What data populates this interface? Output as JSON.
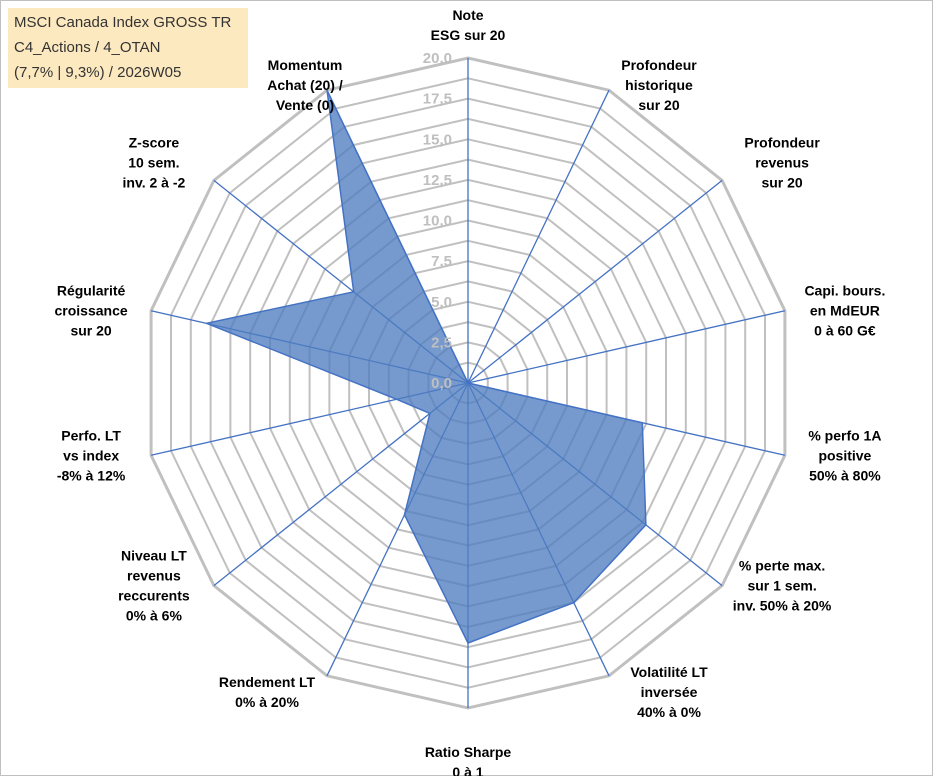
{
  "title": {
    "line1": "MSCI Canada Index GROSS TR",
    "line2": "C4_Actions / 4_OTAN",
    "line3": "(7,7% | 9,3%) / 2026W05"
  },
  "colors": {
    "grid": "#c0c0c0",
    "spoke": "#4472c4",
    "fill": "#4f7dc0",
    "fill_stroke": "#4472c4",
    "tick_text": "#bfbfbf",
    "title_bg": "#fde9bf"
  },
  "chart_data": {
    "type": "radar",
    "rmin": 0,
    "rmax": 20,
    "grid_step": 1.25,
    "tick_values": [
      0,
      2.5,
      5,
      7.5,
      10,
      12.5,
      15,
      17.5,
      20
    ],
    "tick_labels": [
      "0,0",
      "2,5",
      "5,0",
      "7,5",
      "10,0",
      "12,5",
      "15,0",
      "17,5",
      "20,0"
    ],
    "axes": [
      {
        "label": [
          "Note",
          "ESG sur 20"
        ],
        "value": 0
      },
      {
        "label": [
          "Profondeur",
          "historique",
          "sur 20"
        ],
        "value": 0
      },
      {
        "label": [
          "Profondeur",
          "revenus",
          "sur 20"
        ],
        "value": 0
      },
      {
        "label": [
          "Capi. bours.",
          "en MdEUR",
          "0 à 60 G€"
        ],
        "value": 0
      },
      {
        "label": [
          "% perfo 1A",
          "positive",
          "50% à 80%"
        ],
        "value": 11
      },
      {
        "label": [
          "% perte max.",
          "sur 1 sem.",
          "inv. 50% à 20%"
        ],
        "value": 14
      },
      {
        "label": [
          "Volatilité LT",
          "inversée",
          "40% à 0%"
        ],
        "value": 15
      },
      {
        "label": [
          "Ratio Sharpe",
          "0 à 1"
        ],
        "value": 16
      },
      {
        "label": [
          "Rendement LT",
          "0% à 20%"
        ],
        "value": 9
      },
      {
        "label": [
          "Niveau LT",
          "revenus",
          "reccurents",
          "0% à 6%"
        ],
        "value": 3
      },
      {
        "label": [
          "Perfo. LT",
          "vs index",
          "-8% à 12%"
        ],
        "value": 4.5
      },
      {
        "label": [
          "Régularité",
          "croissance",
          "sur 20"
        ],
        "value": 16.5
      },
      {
        "label": [
          "Z-score",
          "10 sem.",
          "inv. 2 à -2"
        ],
        "value": 9
      },
      {
        "label": [
          "Momentum",
          "Achat (20) /",
          "Vente (0)"
        ],
        "value": 20
      }
    ]
  }
}
